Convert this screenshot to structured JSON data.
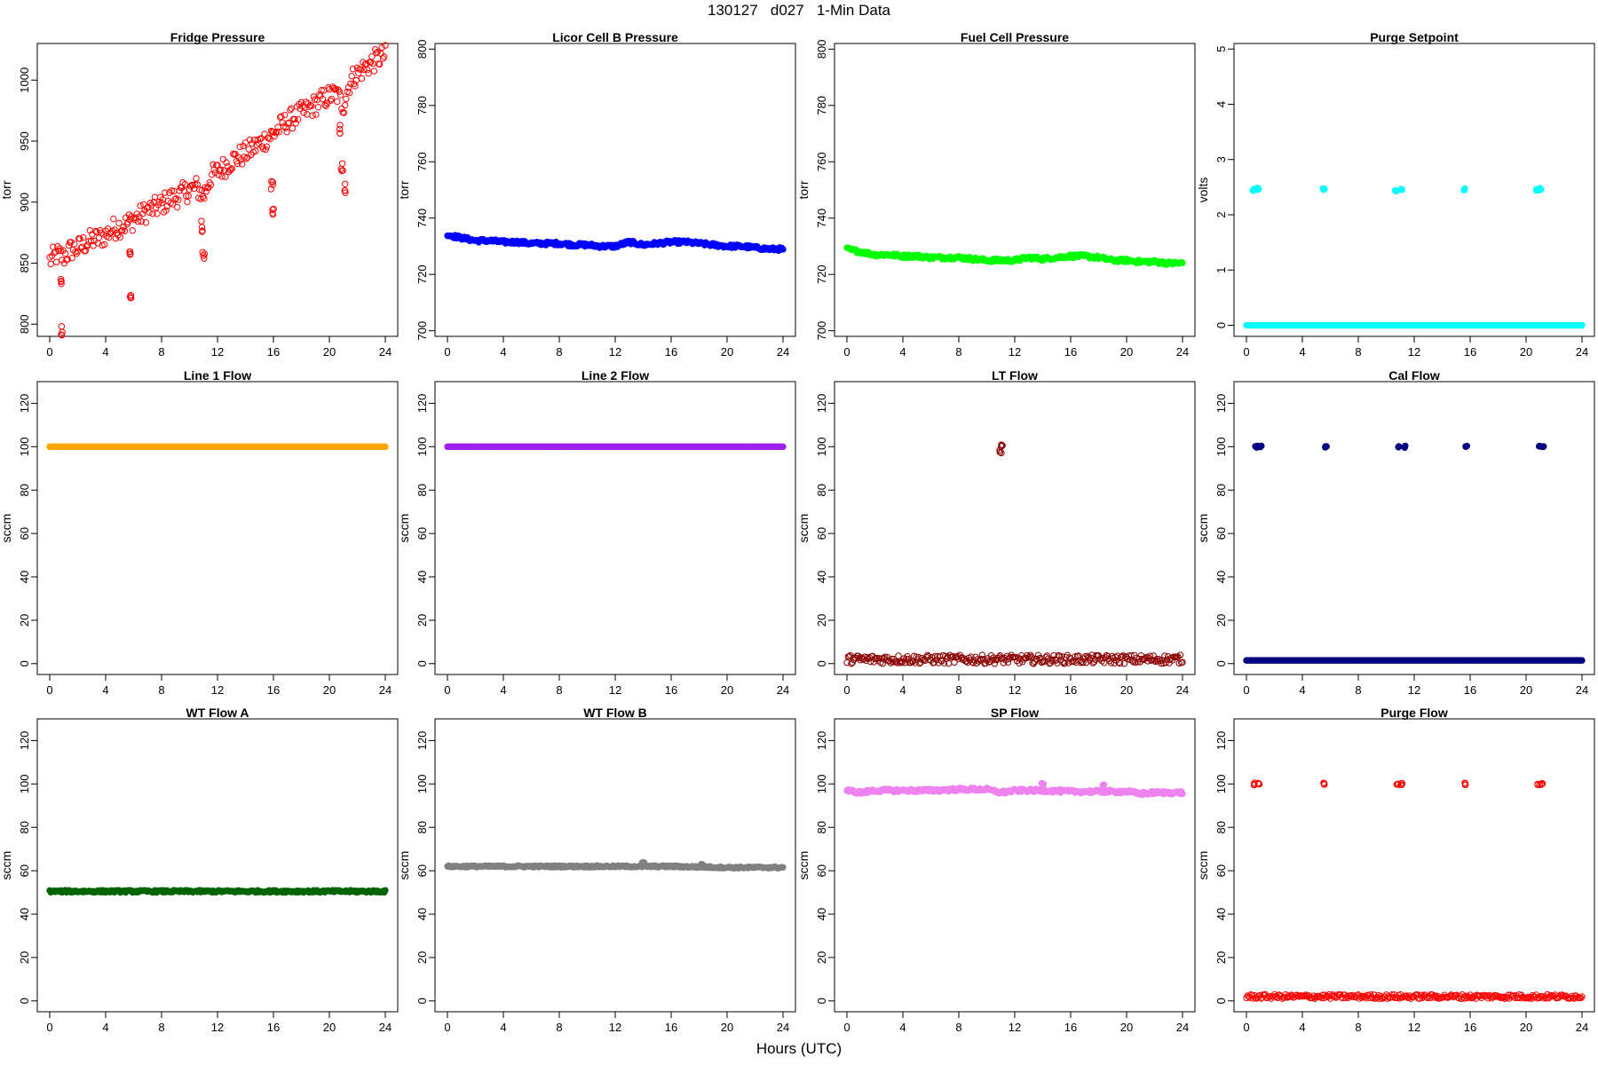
{
  "page": {
    "title": "130127   d027   1-Min Data",
    "xlabel": "Hours (UTC)"
  },
  "chart_data": [
    {
      "type": "scatter",
      "title": "Fridge Pressure",
      "ylabel": "torr",
      "color": "#ff0000",
      "fill": false,
      "xlim": [
        0,
        24
      ],
      "xticks": [
        0,
        4,
        8,
        12,
        16,
        20,
        24
      ],
      "ylim": [
        790,
        1030
      ],
      "yticks": [
        800,
        850,
        900,
        950,
        1000
      ],
      "x": [
        0.0,
        0.5,
        1.0,
        1.5,
        2.0,
        2.5,
        3.0,
        3.5,
        4.0,
        4.5,
        5.0,
        5.5,
        6.0,
        6.5,
        7.0,
        7.5,
        8.0,
        8.5,
        9.0,
        9.5,
        10.0,
        10.5,
        11.0,
        11.5,
        12.0,
        12.5,
        13.0,
        13.5,
        14.0,
        14.5,
        15.0,
        15.5,
        16.0,
        16.5,
        17.0,
        17.5,
        18.0,
        18.5,
        19.0,
        19.5,
        20.0,
        20.5,
        21.0,
        21.5,
        22.0,
        22.5,
        23.0,
        23.5,
        24.0,
        0.8,
        0.9,
        5.7,
        5.8,
        10.9,
        11.0,
        15.9,
        16.0,
        20.8,
        20.9,
        21.1
      ],
      "y": [
        852,
        857,
        855,
        861,
        862,
        866,
        869,
        870,
        873,
        878,
        880,
        882,
        886,
        889,
        893,
        895,
        898,
        902,
        904,
        907,
        910,
        912,
        905,
        921,
        925,
        929,
        934,
        937,
        940,
        944,
        948,
        952,
        956,
        962,
        966,
        970,
        973,
        976,
        980,
        984,
        987,
        989,
        979,
        1000,
        1005,
        1010,
        1014,
        1018,
        1020,
        835,
        795,
        855,
        820,
        880,
        855,
        915,
        893,
        960,
        930,
        912
      ],
      "spread": 9
    },
    {
      "type": "scatter",
      "title": "Licor Cell B Pressure",
      "ylabel": "torr",
      "color": "#0000ff",
      "fill": true,
      "xlim": [
        0,
        24
      ],
      "xticks": [
        0,
        4,
        8,
        12,
        16,
        20,
        24
      ],
      "ylim": [
        698,
        802
      ],
      "yticks": [
        700,
        720,
        740,
        760,
        780,
        800
      ],
      "x": [
        0,
        1,
        2,
        3,
        4,
        5,
        6,
        7,
        8,
        9,
        10,
        11,
        12,
        13,
        14,
        15,
        16,
        17,
        18,
        19,
        20,
        21,
        22,
        23,
        24
      ],
      "y": [
        734,
        733,
        732,
        732,
        731.5,
        731.5,
        731,
        731,
        731,
        730.5,
        730.5,
        730,
        730,
        731.5,
        730.5,
        731,
        731.5,
        731.5,
        731,
        730.5,
        730,
        730,
        729.5,
        729,
        729
      ],
      "spread": 0.6
    },
    {
      "type": "scatter",
      "title": "Fuel Cell Pressure",
      "ylabel": "torr",
      "color": "#00ff00",
      "fill": true,
      "xlim": [
        0,
        24
      ],
      "xticks": [
        0,
        4,
        8,
        12,
        16,
        20,
        24
      ],
      "ylim": [
        698,
        802
      ],
      "yticks": [
        700,
        720,
        740,
        760,
        780,
        800
      ],
      "x": [
        0,
        1,
        2,
        3,
        4,
        5,
        6,
        7,
        8,
        9,
        10,
        11,
        12,
        13,
        14,
        15,
        16,
        17,
        18,
        19,
        20,
        21,
        22,
        23,
        24
      ],
      "y": [
        729,
        728,
        727,
        727,
        726.5,
        726.5,
        726,
        726,
        726,
        725.5,
        725,
        725,
        725,
        726,
        725.5,
        726,
        726.5,
        726.5,
        726,
        725,
        725,
        724.5,
        724.5,
        724,
        724
      ],
      "spread": 0.6
    },
    {
      "type": "scatter",
      "title": "Purge Setpoint",
      "ylabel": "volts",
      "color": "#00ffff",
      "fill": true,
      "xlim": [
        0,
        24
      ],
      "xticks": [
        0,
        4,
        8,
        12,
        16,
        20,
        24
      ],
      "ylim": [
        -0.2,
        5.1
      ],
      "yticks": [
        0,
        1,
        2,
        3,
        4,
        5
      ],
      "x": [
        0,
        2,
        4,
        6,
        8,
        10,
        12,
        14,
        16,
        18,
        20,
        22,
        24,
        0.5,
        0.8,
        5.5,
        10.7,
        11.1,
        15.6,
        20.8,
        21.0
      ],
      "y": [
        0,
        0,
        0,
        0,
        0,
        0,
        0,
        0,
        0,
        0,
        0,
        0,
        0,
        2.45,
        2.47,
        2.46,
        2.44,
        2.46,
        2.46,
        2.45,
        2.47
      ],
      "spread": 0
    },
    {
      "type": "scatter",
      "title": "Line 1 Flow",
      "ylabel": "sccm",
      "color": "#ffa500",
      "fill": true,
      "xlim": [
        0,
        24
      ],
      "xticks": [
        0,
        4,
        8,
        12,
        16,
        20,
        24
      ],
      "ylim": [
        -5,
        130
      ],
      "yticks": [
        0,
        20,
        40,
        60,
        80,
        100,
        120
      ],
      "x": [
        0,
        4,
        8,
        12,
        16,
        20,
        24
      ],
      "y": [
        100,
        100,
        100,
        100,
        100,
        100,
        100
      ],
      "spread": 0
    },
    {
      "type": "scatter",
      "title": "Line 2 Flow",
      "ylabel": "sccm",
      "color": "#a020f0",
      "fill": true,
      "xlim": [
        0,
        24
      ],
      "xticks": [
        0,
        4,
        8,
        12,
        16,
        20,
        24
      ],
      "ylim": [
        -5,
        130
      ],
      "yticks": [
        0,
        20,
        40,
        60,
        80,
        100,
        120
      ],
      "x": [
        0,
        4,
        8,
        12,
        16,
        20,
        24
      ],
      "y": [
        100,
        100,
        100,
        100,
        100,
        100,
        100
      ],
      "spread": 0
    },
    {
      "type": "scatter",
      "title": "LT Flow",
      "ylabel": "sccm",
      "color": "#8b0000",
      "fill": false,
      "xlim": [
        0,
        24
      ],
      "xticks": [
        0,
        4,
        8,
        12,
        16,
        20,
        24
      ],
      "ylim": [
        -5,
        130
      ],
      "yticks": [
        0,
        20,
        40,
        60,
        80,
        100,
        120
      ],
      "x": [
        0,
        2,
        4,
        6,
        8,
        10,
        12,
        14,
        16,
        18,
        20,
        22,
        24,
        11.0,
        11.1
      ],
      "y": [
        2,
        2,
        2,
        2,
        2,
        2,
        2,
        2,
        2,
        2,
        2,
        2,
        2,
        98,
        100
      ],
      "spread": 2
    },
    {
      "type": "scatter",
      "title": "Cal Flow",
      "ylabel": "sccm",
      "color": "#000080",
      "fill": true,
      "xlim": [
        0,
        24
      ],
      "xticks": [
        0,
        4,
        8,
        12,
        16,
        20,
        24
      ],
      "ylim": [
        -5,
        130
      ],
      "yticks": [
        0,
        20,
        40,
        60,
        80,
        100,
        120
      ],
      "x": [
        0,
        2,
        4,
        6,
        8,
        10,
        12,
        14,
        16,
        18,
        20,
        22,
        24,
        0.7,
        1.0,
        5.7,
        10.9,
        11.3,
        15.7,
        21.0,
        21.2
      ],
      "y": [
        1.5,
        1.5,
        1.5,
        1.5,
        1.5,
        1.5,
        1.5,
        1.5,
        1.5,
        1.5,
        1.5,
        1.5,
        1.5,
        100,
        100,
        100,
        100,
        100,
        100,
        100,
        100
      ],
      "spread": 0
    },
    {
      "type": "scatter",
      "title": "WT Flow A",
      "ylabel": "sccm",
      "color": "#006400",
      "fill": true,
      "xlim": [
        0,
        24
      ],
      "xticks": [
        0,
        4,
        8,
        12,
        16,
        20,
        24
      ],
      "ylim": [
        -5,
        130
      ],
      "yticks": [
        0,
        20,
        40,
        60,
        80,
        100,
        120
      ],
      "x": [
        0,
        4,
        8,
        12,
        16,
        20,
        24
      ],
      "y": [
        50.5,
        50.5,
        50.5,
        50.5,
        50.5,
        50.5,
        50.5
      ],
      "spread": 0.5
    },
    {
      "type": "scatter",
      "title": "WT Flow B",
      "ylabel": "sccm",
      "color": "#808080",
      "fill": true,
      "xlim": [
        0,
        24
      ],
      "xticks": [
        0,
        4,
        8,
        12,
        16,
        20,
        24
      ],
      "ylim": [
        -5,
        130
      ],
      "yticks": [
        0,
        20,
        40,
        60,
        80,
        100,
        120
      ],
      "x": [
        0,
        4,
        8,
        12,
        16,
        20,
        24,
        14.0,
        18.2
      ],
      "y": [
        62,
        62,
        62,
        62,
        62,
        61.5,
        61.5,
        63.5,
        63
      ],
      "spread": 0.4
    },
    {
      "type": "scatter",
      "title": "SP Flow",
      "ylabel": "sccm",
      "color": "#ee82ee",
      "fill": true,
      "xlim": [
        0,
        24
      ],
      "xticks": [
        0,
        4,
        8,
        12,
        16,
        20,
        24
      ],
      "ylim": [
        -5,
        130
      ],
      "yticks": [
        0,
        20,
        40,
        60,
        80,
        100,
        120
      ],
      "x": [
        0,
        1,
        2,
        4,
        6,
        8,
        10,
        11,
        12,
        14,
        16,
        18,
        20,
        21,
        22,
        24,
        14.0,
        18.3
      ],
      "y": [
        97,
        96,
        97,
        97,
        97,
        97.5,
        97.5,
        96,
        97,
        97,
        96.5,
        96.5,
        96.5,
        95.5,
        96,
        96,
        100,
        99.5
      ],
      "spread": 0.7
    },
    {
      "type": "scatter",
      "title": "Purge Flow",
      "ylabel": "sccm",
      "color": "#ff0000",
      "fill": false,
      "xlim": [
        0,
        24
      ],
      "xticks": [
        0,
        4,
        8,
        12,
        16,
        20,
        24
      ],
      "ylim": [
        -5,
        130
      ],
      "yticks": [
        0,
        20,
        40,
        60,
        80,
        100,
        120
      ],
      "x": [
        0,
        2,
        4,
        6,
        8,
        10,
        12,
        14,
        16,
        18,
        20,
        22,
        24,
        0.6,
        0.9,
        5.5,
        10.8,
        11.1,
        15.6,
        20.9,
        21.1
      ],
      "y": [
        2,
        2,
        2,
        2,
        2,
        2,
        2,
        2,
        2,
        2,
        2,
        2,
        2,
        100,
        100,
        100,
        100,
        100,
        100,
        100,
        100
      ],
      "spread": 1
    }
  ]
}
